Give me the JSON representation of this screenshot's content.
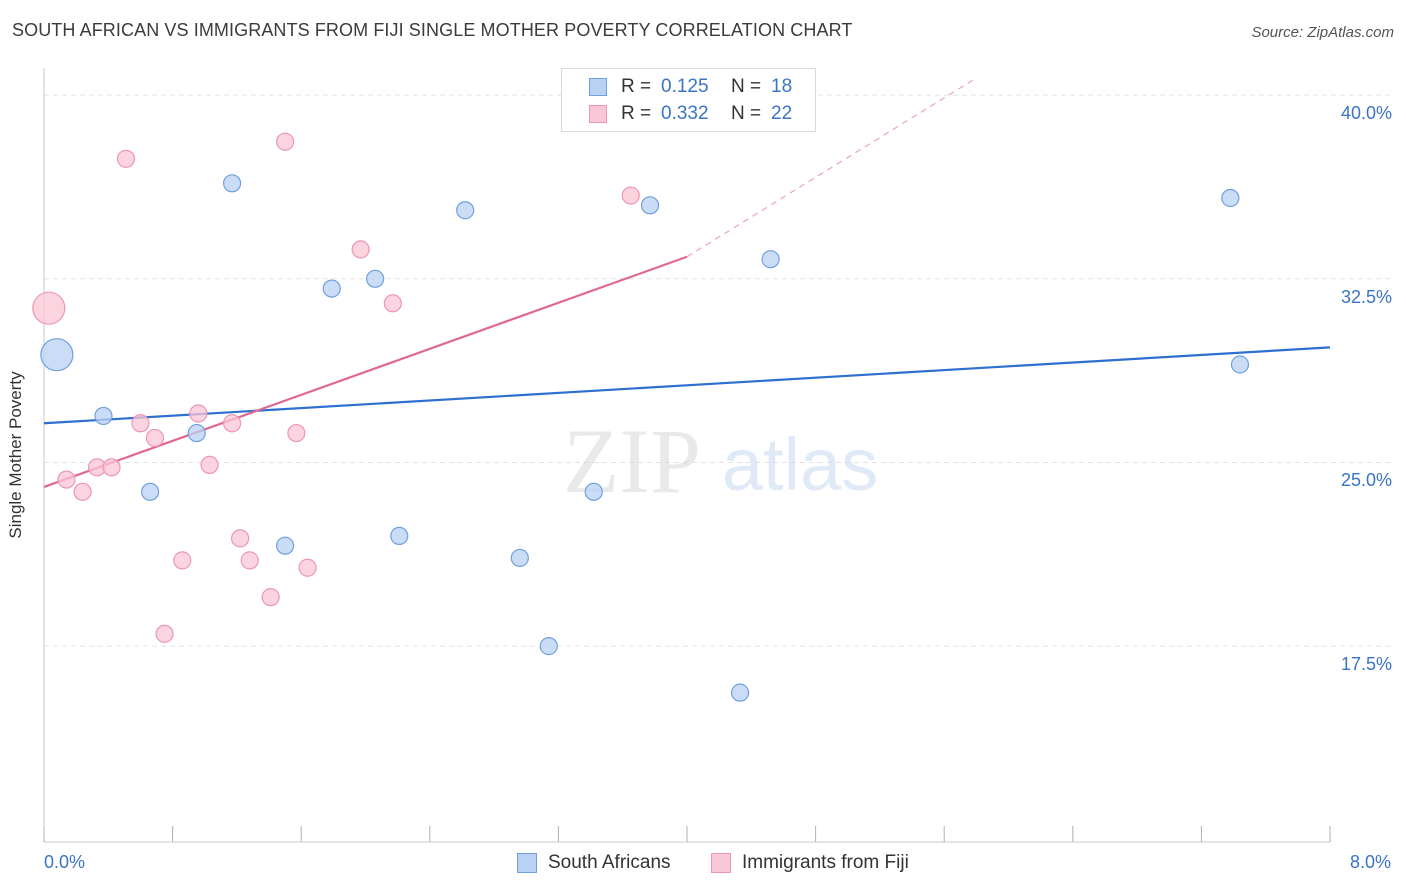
{
  "title": "SOUTH AFRICAN VS IMMIGRANTS FROM FIJI SINGLE MOTHER POVERTY CORRELATION CHART",
  "source": "Source: ZipAtlas.com",
  "watermark": {
    "zip": "ZIP",
    "atlas": "atlas"
  },
  "legend_top": [
    {
      "r_key": "R =",
      "r_value": "0.125",
      "n_key": "N =",
      "n_value": "18"
    },
    {
      "r_key": "R =",
      "r_value": "0.332",
      "n_key": "N =",
      "n_value": "22"
    }
  ],
  "legend_bottom": [
    "South Africans",
    "Immigrants from Fiji"
  ],
  "colors": {
    "blue_fill": "#b9d2f3",
    "blue_stroke": "#6f9fde",
    "blue_line": "#2e6fcf",
    "pink_fill": "#f9c6d5",
    "pink_stroke": "#ec97b2",
    "pink_line": "#e0688f",
    "grid": "#e3e3e3",
    "tick_text": "#3a74c9"
  },
  "chart_data": {
    "type": "scatter",
    "title": "SOUTH AFRICAN VS IMMIGRANTS FROM FIJI SINGLE MOTHER POVERTY CORRELATION CHART",
    "xlabel": "",
    "ylabel": "Single Mother Poverty",
    "xlim": [
      0.0,
      8.0
    ],
    "ylim": [
      9.5,
      40.7
    ],
    "x_tick_labels": [
      "0.0%",
      "8.0%"
    ],
    "y_ticks": [
      17.5,
      25.0,
      32.5,
      40.0
    ],
    "y_tick_labels": [
      "17.5%",
      "25.0%",
      "32.5%",
      "40.0%"
    ],
    "grid": "horizontal dashed",
    "legend_position": "top-center",
    "series": [
      {
        "name": "South Africans",
        "R": 0.125,
        "N": 18,
        "points": [
          {
            "x": 0.08,
            "y": 29.4,
            "size": "large"
          },
          {
            "x": 0.37,
            "y": 26.9
          },
          {
            "x": 0.66,
            "y": 23.8
          },
          {
            "x": 0.95,
            "y": 26.2
          },
          {
            "x": 1.17,
            "y": 36.4
          },
          {
            "x": 1.5,
            "y": 21.6
          },
          {
            "x": 1.79,
            "y": 32.1
          },
          {
            "x": 2.06,
            "y": 32.5
          },
          {
            "x": 2.21,
            "y": 22.0
          },
          {
            "x": 2.62,
            "y": 35.3
          },
          {
            "x": 2.96,
            "y": 21.1
          },
          {
            "x": 3.14,
            "y": 17.5
          },
          {
            "x": 3.42,
            "y": 23.8
          },
          {
            "x": 3.77,
            "y": 35.5
          },
          {
            "x": 4.33,
            "y": 15.6
          },
          {
            "x": 4.52,
            "y": 33.3
          },
          {
            "x": 7.38,
            "y": 35.8
          },
          {
            "x": 7.44,
            "y": 29.0
          }
        ],
        "trend": {
          "x": [
            0.0,
            8.0
          ],
          "y": [
            26.6,
            29.7
          ]
        }
      },
      {
        "name": "Immigrants from Fiji",
        "R": 0.332,
        "N": 22,
        "points": [
          {
            "x": 0.03,
            "y": 31.3,
            "size": "large"
          },
          {
            "x": 0.14,
            "y": 24.3
          },
          {
            "x": 0.24,
            "y": 23.8
          },
          {
            "x": 0.33,
            "y": 24.8
          },
          {
            "x": 0.42,
            "y": 24.8
          },
          {
            "x": 0.51,
            "y": 37.4
          },
          {
            "x": 0.6,
            "y": 26.6
          },
          {
            "x": 0.69,
            "y": 26.0
          },
          {
            "x": 0.75,
            "y": 18.0
          },
          {
            "x": 0.86,
            "y": 21.0
          },
          {
            "x": 0.96,
            "y": 27.0
          },
          {
            "x": 1.03,
            "y": 24.9
          },
          {
            "x": 1.17,
            "y": 26.6
          },
          {
            "x": 1.22,
            "y": 21.9
          },
          {
            "x": 1.28,
            "y": 21.0
          },
          {
            "x": 1.41,
            "y": 19.5
          },
          {
            "x": 1.5,
            "y": 38.1
          },
          {
            "x": 1.57,
            "y": 26.2
          },
          {
            "x": 1.64,
            "y": 20.7
          },
          {
            "x": 1.97,
            "y": 33.7
          },
          {
            "x": 2.17,
            "y": 31.5
          },
          {
            "x": 3.65,
            "y": 35.9
          }
        ],
        "trend": {
          "x": [
            0.0,
            4.0
          ],
          "y": [
            24.0,
            33.4
          ]
        },
        "trend_extension_dashed": {
          "x": [
            4.0,
            5.8
          ],
          "y": [
            33.4,
            40.7
          ]
        }
      }
    ]
  }
}
